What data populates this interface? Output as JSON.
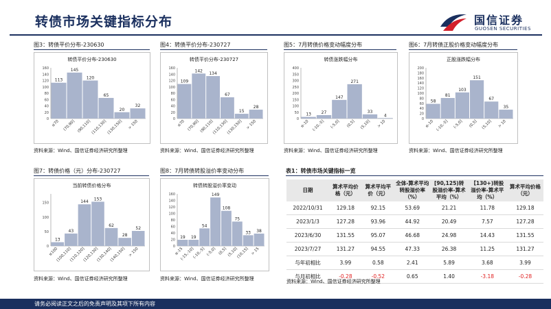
{
  "header": {
    "title": "转债市场关键指标分布",
    "brand_cn": "国信证券",
    "brand_en": "GUOSEN SECURITIES"
  },
  "colors": {
    "bar": "#a9b4cc",
    "navy": "#1a2f5e",
    "negative": "#e02020"
  },
  "figures": [
    {
      "caption": "图3：转债平价分布-230630",
      "source": "资料来源：Wind、国信证券经济研究所整理"
    },
    {
      "caption": "图4：转债平价分布-230727",
      "source": "资料来源：Wind、国信证券经济研究所整理"
    },
    {
      "caption": "图5：7月转债价格变动幅度分布",
      "source": "资料来源：Wind、国信证券经济研究所整理"
    },
    {
      "caption": "图6：7月转债正股价格变动幅度分布",
      "source": "资料来源：Wind、国信证券经济研究所整理"
    },
    {
      "caption": "图7：转债价格（元）分布-230727",
      "source": "资料来源：Wind、国信证券经济研究所整理"
    },
    {
      "caption": "图8：7月转债转股溢价率变动分布",
      "source": "资料来源：Wind、国信证券经济研究所整理"
    }
  ],
  "chart_data": [
    {
      "type": "bar",
      "title": "转债平价分布-230630",
      "categories": [
        "≤70",
        "(70,90]",
        "(90,110]",
        "(110,130]",
        "(130,150]",
        "> 150"
      ],
      "values": [
        113,
        145,
        120,
        65,
        20,
        32
      ],
      "ylim": [
        0,
        160
      ]
    },
    {
      "type": "bar",
      "title": "转债平价分布-230727",
      "categories": [
        "≤70",
        "(70,90]",
        "(90,110]",
        "(110,130]",
        "(130,150]",
        "> 150"
      ],
      "values": [
        109,
        142,
        134,
        67,
        15,
        28
      ],
      "ylim": [
        0,
        160
      ]
    },
    {
      "type": "bar",
      "title": "转债涨跌幅分布",
      "categories": [
        "≤-10",
        "(-10,-5]",
        "(-5,0]",
        "(0,5]",
        "(5,10]",
        "> 10"
      ],
      "values": [
        13,
        27,
        147,
        271,
        33,
        4
      ],
      "ylim": [
        0,
        400
      ],
      "yticks": [
        0,
        50,
        100,
        150,
        200,
        250,
        300,
        350,
        400
      ]
    },
    {
      "type": "bar",
      "title": "正股涨跌幅分布",
      "categories": [
        "≤-10",
        "(-10,-5]",
        "(-5,0]",
        "(0,5]",
        "(5,10]",
        "> 10"
      ],
      "values": [
        58,
        81,
        103,
        151,
        67,
        35
      ],
      "ylim": [
        0,
        200
      ],
      "yticks": [
        0,
        20,
        40,
        60,
        80,
        100,
        120,
        140,
        160,
        180,
        200
      ]
    },
    {
      "type": "bar",
      "title": "当前转债价格分布",
      "categories": [
        "≤100",
        "(100,110]",
        "(110,120]",
        "(120,130]",
        "(130,140]",
        "(140,150]",
        "> 150"
      ],
      "values": [
        13,
        43,
        144,
        153,
        62,
        28,
        52
      ],
      "ylim": [
        0,
        180
      ]
    },
    {
      "type": "bar",
      "title": "转债转股溢价率变动",
      "categories": [
        "≤-15",
        "(-15,-10]",
        "(-10,-5]",
        "(-5,0]",
        "(0,5]",
        "(5,10]",
        "(10,15]",
        "> 15"
      ],
      "values": [
        19,
        19,
        54,
        149,
        108,
        75,
        33,
        38
      ],
      "ylim": [
        0,
        160
      ]
    }
  ],
  "table": {
    "title": "表1：转债市场关键指标一览",
    "headers": [
      "日期",
      "算术平均价格（元）",
      "算术平均平价（元）",
      "全体-算术平均转股溢价率（%）",
      "[90,125)转股溢价率-算术平均（%）",
      "【130+)转股溢价率-算术平均（%）",
      "算术平均价格（元）"
    ],
    "rows": [
      [
        "2022/10/31",
        "129.18",
        "92.15",
        "53.69",
        "21.21",
        "11.78",
        "129.18"
      ],
      [
        "2023/1/3",
        "127.28",
        "93.96",
        "44.92",
        "20.49",
        "7.57",
        "127.28"
      ],
      [
        "2023/6/30",
        "131.55",
        "95.07",
        "46.68",
        "24.98",
        "14.43",
        "131.55"
      ],
      [
        "2023/7/27",
        "131.27",
        "94.55",
        "47.33",
        "26.38",
        "11.25",
        "131.27"
      ],
      [
        "与年初相比",
        "3.99",
        "0.58",
        "2.41",
        "5.89",
        "3.68",
        "3.99"
      ],
      [
        "与月初相比",
        "-0.28",
        "-0.52",
        "0.65",
        "1.40",
        "-3.18",
        "-0.28"
      ]
    ],
    "source": "资料来源：Wind、国信证券经济研究所整理"
  },
  "footer": {
    "text": "请务必阅读正文之后的免责声明及其项下所有内容"
  }
}
